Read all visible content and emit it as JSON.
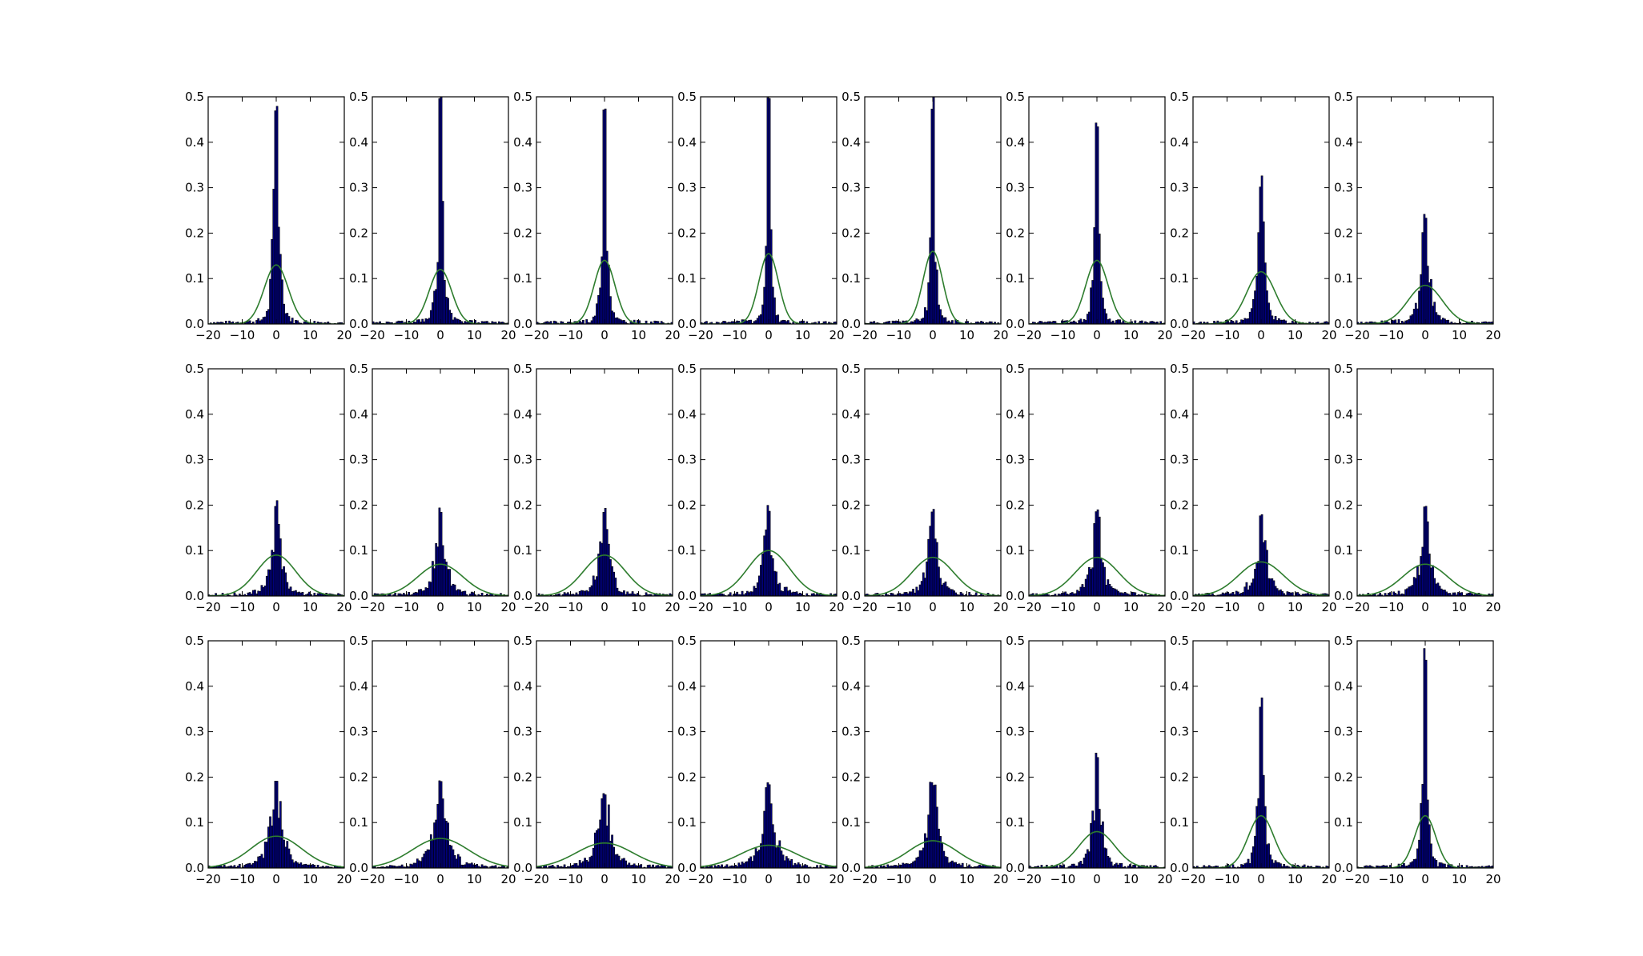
{
  "figure": {
    "background": "#ffffff",
    "rows": 3,
    "cols": 8,
    "bar_color": "#000080",
    "bar_edge_color": "#000000",
    "curve_color": "#2e7d2e"
  },
  "chart_data": [
    {
      "type": "bar",
      "panel": "r1c1",
      "xlim": [
        -20,
        20
      ],
      "ylim": [
        0,
        0.5
      ],
      "xticks": [
        "−20",
        "−10",
        "0",
        "10",
        "20"
      ],
      "yticks": [
        "0.0",
        "0.1",
        "0.2",
        "0.3",
        "0.4",
        "0.5"
      ],
      "grid": false,
      "peak": 0.52,
      "sigma": 1.6,
      "gauss_peak": 0.13
    },
    {
      "type": "bar",
      "panel": "r1c2",
      "xlim": [
        -20,
        20
      ],
      "ylim": [
        0,
        0.5
      ],
      "xticks": [
        "−20",
        "−10",
        "0",
        "10",
        "20"
      ],
      "yticks": [
        "0.0",
        "0.1",
        "0.2",
        "0.3",
        "0.4",
        "0.5"
      ],
      "grid": false,
      "peak": 0.52,
      "sigma": 1.5,
      "gauss_peak": 0.12
    },
    {
      "type": "bar",
      "panel": "r1c3",
      "xlim": [
        -20,
        20
      ],
      "ylim": [
        0,
        0.5
      ],
      "xticks": [
        "−20",
        "−10",
        "0",
        "10",
        "20"
      ],
      "yticks": [
        "0.0",
        "0.1",
        "0.2",
        "0.3",
        "0.4",
        "0.5"
      ],
      "grid": false,
      "peak": 0.52,
      "sigma": 1.4,
      "gauss_peak": 0.14
    },
    {
      "type": "bar",
      "panel": "r1c4",
      "xlim": [
        -20,
        20
      ],
      "ylim": [
        0,
        0.5
      ],
      "xticks": [
        "−20",
        "−10",
        "0",
        "10",
        "20"
      ],
      "yticks": [
        "0.0",
        "0.1",
        "0.2",
        "0.3",
        "0.4",
        "0.5"
      ],
      "grid": false,
      "peak": 0.52,
      "sigma": 1.3,
      "gauss_peak": 0.155
    },
    {
      "type": "bar",
      "panel": "r1c5",
      "xlim": [
        -20,
        20
      ],
      "ylim": [
        0,
        0.5
      ],
      "xticks": [
        "−20",
        "−10",
        "0",
        "10",
        "20"
      ],
      "yticks": [
        "0.0",
        "0.1",
        "0.2",
        "0.3",
        "0.4",
        "0.5"
      ],
      "grid": false,
      "peak": 0.52,
      "sigma": 1.3,
      "gauss_peak": 0.16
    },
    {
      "type": "bar",
      "panel": "r1c6",
      "xlim": [
        -20,
        20
      ],
      "ylim": [
        0,
        0.5
      ],
      "xticks": [
        "−20",
        "−10",
        "0",
        "10",
        "20"
      ],
      "yticks": [
        "0.0",
        "0.1",
        "0.2",
        "0.3",
        "0.4",
        "0.5"
      ],
      "grid": false,
      "peak": 0.46,
      "sigma": 1.5,
      "gauss_peak": 0.14
    },
    {
      "type": "bar",
      "panel": "r1c7",
      "xlim": [
        -20,
        20
      ],
      "ylim": [
        0,
        0.5
      ],
      "xticks": [
        "−20",
        "−10",
        "0",
        "10",
        "20"
      ],
      "yticks": [
        "0.0",
        "0.1",
        "0.2",
        "0.3",
        "0.4",
        "0.5"
      ],
      "grid": false,
      "peak": 0.33,
      "sigma": 1.9,
      "gauss_peak": 0.115
    },
    {
      "type": "bar",
      "panel": "r1c8",
      "xlim": [
        -20,
        20
      ],
      "ylim": [
        0,
        0.5
      ],
      "xticks": [
        "−20",
        "−10",
        "0",
        "10",
        "20"
      ],
      "yticks": [
        "0.0",
        "0.1",
        "0.2",
        "0.3",
        "0.4",
        "0.5"
      ],
      "grid": false,
      "peak": 0.25,
      "sigma": 2.3,
      "gauss_peak": 0.085
    },
    {
      "type": "bar",
      "panel": "r2c1",
      "xlim": [
        -20,
        20
      ],
      "ylim": [
        0,
        0.5
      ],
      "xticks": [
        "−20",
        "−10",
        "0",
        "10",
        "20"
      ],
      "yticks": [
        "0.0",
        "0.1",
        "0.2",
        "0.3",
        "0.4",
        "0.5"
      ],
      "grid": false,
      "peak": 0.215,
      "sigma": 2.6,
      "gauss_peak": 0.09
    },
    {
      "type": "bar",
      "panel": "r2c2",
      "xlim": [
        -20,
        20
      ],
      "ylim": [
        0,
        0.5
      ],
      "xticks": [
        "−20",
        "−10",
        "0",
        "10",
        "20"
      ],
      "yticks": [
        "0.0",
        "0.1",
        "0.2",
        "0.3",
        "0.4",
        "0.5"
      ],
      "grid": false,
      "peak": 0.2,
      "sigma": 3.0,
      "gauss_peak": 0.07
    },
    {
      "type": "bar",
      "panel": "r2c3",
      "xlim": [
        -20,
        20
      ],
      "ylim": [
        0,
        0.5
      ],
      "xticks": [
        "−20",
        "−10",
        "0",
        "10",
        "20"
      ],
      "yticks": [
        "0.0",
        "0.1",
        "0.2",
        "0.3",
        "0.4",
        "0.5"
      ],
      "grid": false,
      "peak": 0.2,
      "sigma": 2.8,
      "gauss_peak": 0.09
    },
    {
      "type": "bar",
      "panel": "r2c4",
      "xlim": [
        -20,
        20
      ],
      "ylim": [
        0,
        0.5
      ],
      "xticks": [
        "−20",
        "−10",
        "0",
        "10",
        "20"
      ],
      "yticks": [
        "0.0",
        "0.1",
        "0.2",
        "0.3",
        "0.4",
        "0.5"
      ],
      "grid": false,
      "peak": 0.205,
      "sigma": 2.8,
      "gauss_peak": 0.1
    },
    {
      "type": "bar",
      "panel": "r2c5",
      "xlim": [
        -20,
        20
      ],
      "ylim": [
        0,
        0.5
      ],
      "xticks": [
        "−20",
        "−10",
        "0",
        "10",
        "20"
      ],
      "yticks": [
        "0.0",
        "0.1",
        "0.2",
        "0.3",
        "0.4",
        "0.5"
      ],
      "grid": false,
      "peak": 0.2,
      "sigma": 2.8,
      "gauss_peak": 0.085
    },
    {
      "type": "bar",
      "panel": "r2c6",
      "xlim": [
        -20,
        20
      ],
      "ylim": [
        0,
        0.5
      ],
      "xticks": [
        "−20",
        "−10",
        "0",
        "10",
        "20"
      ],
      "yticks": [
        "0.0",
        "0.1",
        "0.2",
        "0.3",
        "0.4",
        "0.5"
      ],
      "grid": false,
      "peak": 0.19,
      "sigma": 2.9,
      "gauss_peak": 0.085
    },
    {
      "type": "bar",
      "panel": "r2c7",
      "xlim": [
        -20,
        20
      ],
      "ylim": [
        0,
        0.5
      ],
      "xticks": [
        "−20",
        "−10",
        "0",
        "10",
        "20"
      ],
      "yticks": [
        "0.0",
        "0.1",
        "0.2",
        "0.3",
        "0.4",
        "0.5"
      ],
      "grid": false,
      "peak": 0.19,
      "sigma": 3.0,
      "gauss_peak": 0.075
    },
    {
      "type": "bar",
      "panel": "r2c8",
      "xlim": [
        -20,
        20
      ],
      "ylim": [
        0,
        0.5
      ],
      "xticks": [
        "−20",
        "−10",
        "0",
        "10",
        "20"
      ],
      "yticks": [
        "0.0",
        "0.1",
        "0.2",
        "0.3",
        "0.4",
        "0.5"
      ],
      "grid": false,
      "peak": 0.2,
      "sigma": 3.0,
      "gauss_peak": 0.07
    },
    {
      "type": "bar",
      "panel": "r3c1",
      "xlim": [
        -20,
        20
      ],
      "ylim": [
        0,
        0.5
      ],
      "xticks": [
        "−20",
        "−10",
        "0",
        "10",
        "20"
      ],
      "yticks": [
        "0.0",
        "0.1",
        "0.2",
        "0.3",
        "0.4",
        "0.5"
      ],
      "grid": false,
      "peak": 0.205,
      "sigma": 3.4,
      "gauss_peak": 0.07
    },
    {
      "type": "bar",
      "panel": "r3c2",
      "xlim": [
        -20,
        20
      ],
      "ylim": [
        0,
        0.5
      ],
      "xticks": [
        "−20",
        "−10",
        "0",
        "10",
        "20"
      ],
      "yticks": [
        "0.0",
        "0.1",
        "0.2",
        "0.3",
        "0.4",
        "0.5"
      ],
      "grid": false,
      "peak": 0.195,
      "sigma": 3.8,
      "gauss_peak": 0.065
    },
    {
      "type": "bar",
      "panel": "r3c3",
      "xlim": [
        -20,
        20
      ],
      "ylim": [
        0,
        0.5
      ],
      "xticks": [
        "−20",
        "−10",
        "0",
        "10",
        "20"
      ],
      "yticks": [
        "0.0",
        "0.1",
        "0.2",
        "0.3",
        "0.4",
        "0.5"
      ],
      "grid": false,
      "peak": 0.175,
      "sigma": 3.8,
      "gauss_peak": 0.055
    },
    {
      "type": "bar",
      "panel": "r3c4",
      "xlim": [
        -20,
        20
      ],
      "ylim": [
        0,
        0.5
      ],
      "xticks": [
        "−20",
        "−10",
        "0",
        "10",
        "20"
      ],
      "yticks": [
        "0.0",
        "0.1",
        "0.2",
        "0.3",
        "0.4",
        "0.5"
      ],
      "grid": false,
      "peak": 0.19,
      "sigma": 3.8,
      "gauss_peak": 0.05
    },
    {
      "type": "bar",
      "panel": "r3c5",
      "xlim": [
        -20,
        20
      ],
      "ylim": [
        0,
        0.5
      ],
      "xticks": [
        "−20",
        "−10",
        "0",
        "10",
        "20"
      ],
      "yticks": [
        "0.0",
        "0.1",
        "0.2",
        "0.3",
        "0.4",
        "0.5"
      ],
      "grid": false,
      "peak": 0.2,
      "sigma": 3.3,
      "gauss_peak": 0.06
    },
    {
      "type": "bar",
      "panel": "r3c6",
      "xlim": [
        -20,
        20
      ],
      "ylim": [
        0,
        0.5
      ],
      "xticks": [
        "−20",
        "−10",
        "0",
        "10",
        "20"
      ],
      "yticks": [
        "0.0",
        "0.1",
        "0.2",
        "0.3",
        "0.4",
        "0.5"
      ],
      "grid": false,
      "peak": 0.255,
      "sigma": 2.4,
      "gauss_peak": 0.08
    },
    {
      "type": "bar",
      "panel": "r3c7",
      "xlim": [
        -20,
        20
      ],
      "ylim": [
        0,
        0.5
      ],
      "xticks": [
        "−20",
        "−10",
        "0",
        "10",
        "20"
      ],
      "yticks": [
        "0.0",
        "0.1",
        "0.2",
        "0.3",
        "0.4",
        "0.5"
      ],
      "grid": false,
      "peak": 0.375,
      "sigma": 1.7,
      "gauss_peak": 0.115
    },
    {
      "type": "bar",
      "panel": "r3c8",
      "xlim": [
        -20,
        20
      ],
      "ylim": [
        0,
        0.5
      ],
      "xticks": [
        "−20",
        "−10",
        "0",
        "10",
        "20"
      ],
      "yticks": [
        "0.0",
        "0.1",
        "0.2",
        "0.3",
        "0.4",
        "0.5"
      ],
      "grid": false,
      "peak": 0.485,
      "sigma": 1.4,
      "gauss_peak": 0.115
    }
  ]
}
